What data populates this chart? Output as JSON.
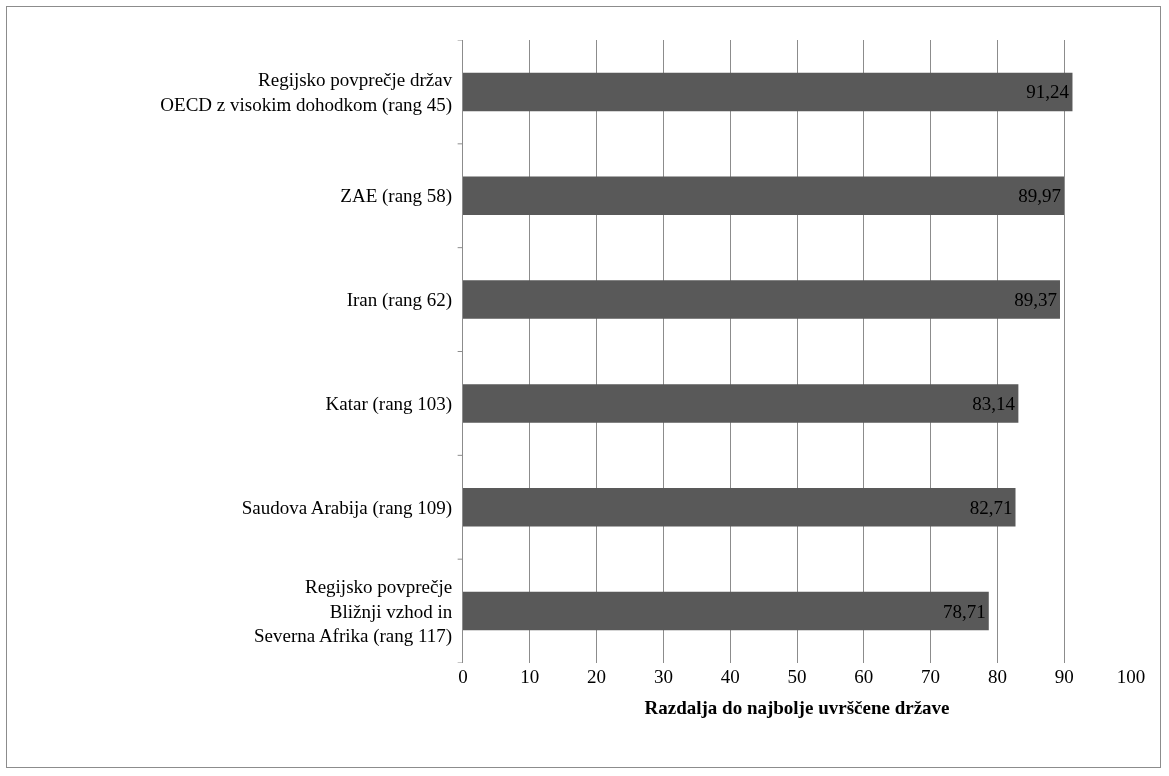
{
  "chart_data": {
    "type": "bar",
    "orientation": "horizontal",
    "categories": [
      "Regijsko povprečje držav\nOECD z visokim dohodkom (rang 45)",
      "ZAE (rang 58)",
      "Iran (rang 62)",
      "Katar (rang 103)",
      "Saudova Arabija (rang 109)",
      "Regijsko povprečje\nBližnji vzhod in\nSeverna Afrika (rang 117)"
    ],
    "values": [
      91.24,
      89.97,
      89.37,
      83.14,
      82.71,
      78.71
    ],
    "color": "#595959",
    "xlabel": "Razdalja do najbolje uvrščene države",
    "xlim": [
      0,
      100
    ],
    "xticks": [
      0,
      10,
      20,
      30,
      40,
      50,
      60,
      70,
      80,
      90,
      100
    ],
    "value_labels": [
      "91,24",
      "89,97",
      "89,37",
      "83,14",
      "82,71",
      "78,71"
    ],
    "grid": "x",
    "legend": false
  }
}
